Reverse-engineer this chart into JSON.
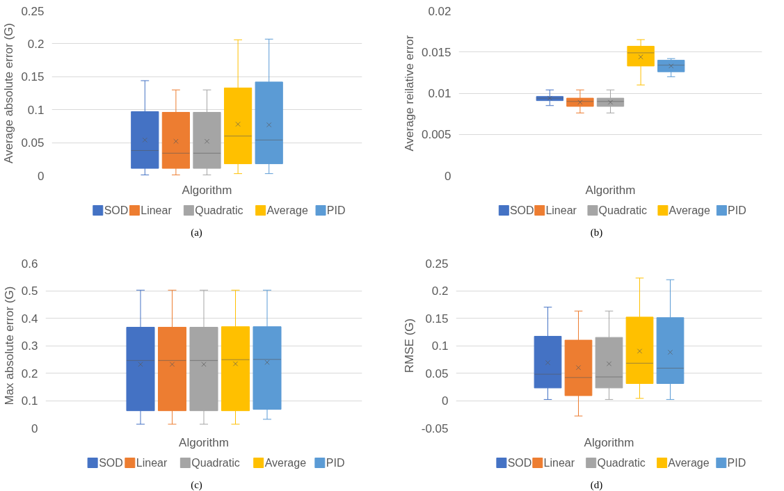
{
  "chart_data": [
    {
      "type": "box",
      "categories": [
        null
      ],
      "xlabel": "Algorithm",
      "ylabel": "Average absolute error (G)",
      "ylim": [
        0,
        0.25
      ],
      "yticks": [
        0,
        0.05,
        0.1,
        0.15,
        0.2,
        0.25
      ],
      "grid": "y",
      "legend": "bottom",
      "tick_labels": "y",
      "annotations": [
        "(a)"
      ],
      "series": [
        {
          "name": "SOD",
          "color": "#4472c4",
          "boxes": [
            {
              "low": 0.001,
              "q1": 0.011,
              "median": 0.038,
              "q3": 0.097,
              "high": 0.144,
              "mean": 0.054
            }
          ]
        },
        {
          "name": "Linear",
          "color": "#ed7d31",
          "boxes": [
            {
              "low": 0.001,
              "q1": 0.011,
              "median": 0.034,
              "q3": 0.096,
              "high": 0.13,
              "mean": 0.052
            }
          ]
        },
        {
          "name": "Quadratic",
          "color": "#a5a5a5",
          "boxes": [
            {
              "low": 0.001,
              "q1": 0.011,
              "median": 0.034,
              "q3": 0.096,
              "high": 0.13,
              "mean": 0.052
            }
          ]
        },
        {
          "name": "Average",
          "color": "#ffc000",
          "boxes": [
            {
              "low": 0.003,
              "q1": 0.018,
              "median": 0.06,
              "q3": 0.133,
              "high": 0.206,
              "mean": 0.078
            }
          ]
        },
        {
          "name": "PID",
          "color": "#5b9bd5",
          "boxes": [
            {
              "low": 0.003,
              "q1": 0.018,
              "median": 0.054,
              "q3": 0.142,
              "high": 0.207,
              "mean": 0.077
            }
          ]
        }
      ]
    },
    {
      "type": "box",
      "categories": [
        null
      ],
      "xlabel": "Algorithm",
      "ylabel": "Average reilative error",
      "ylim": [
        0,
        0.02
      ],
      "yticks": [
        0,
        0.005,
        0.01,
        0.015,
        0.02
      ],
      "grid": "y",
      "legend": "bottom",
      "tick_labels": "y",
      "annotations": [
        "(b)"
      ],
      "series": [
        {
          "name": "SOD",
          "color": "#4472c4",
          "boxes": [
            {
              "low": 0.0085,
              "q1": 0.0091,
              "median": 0.0094,
              "q3": 0.0096,
              "high": 0.0104,
              "mean": 0.0094
            }
          ]
        },
        {
          "name": "Linear",
          "color": "#ed7d31",
          "boxes": [
            {
              "low": 0.0076,
              "q1": 0.0084,
              "median": 0.009,
              "q3": 0.0094,
              "high": 0.0104,
              "mean": 0.0089
            }
          ]
        },
        {
          "name": "Quadratic",
          "color": "#a5a5a5",
          "boxes": [
            {
              "low": 0.0076,
              "q1": 0.0084,
              "median": 0.009,
              "q3": 0.0094,
              "high": 0.0104,
              "mean": 0.0089
            }
          ]
        },
        {
          "name": "Average",
          "color": "#ffc000",
          "boxes": [
            {
              "low": 0.011,
              "q1": 0.0133,
              "median": 0.0149,
              "q3": 0.0157,
              "high": 0.0165,
              "mean": 0.0144
            }
          ]
        },
        {
          "name": "PID",
          "color": "#5b9bd5",
          "boxes": [
            {
              "low": 0.012,
              "q1": 0.0126,
              "median": 0.0134,
              "q3": 0.014,
              "high": 0.0142,
              "mean": 0.0133
            }
          ]
        }
      ]
    },
    {
      "type": "box",
      "categories": [
        null
      ],
      "xlabel": "Algorithm",
      "ylabel": "Max absolute error (G)",
      "ylim": [
        0,
        0.6
      ],
      "yticks": [
        0,
        0.1,
        0.2,
        0.3,
        0.4,
        0.5,
        0.6
      ],
      "grid": "y",
      "legend": "bottom",
      "tick_labels": "y",
      "annotations": [
        "(c)"
      ],
      "series": [
        {
          "name": "SOD",
          "color": "#4472c4",
          "boxes": [
            {
              "low": 0.014,
              "q1": 0.063,
              "median": 0.246,
              "q3": 0.367,
              "high": 0.502,
              "mean": 0.232
            }
          ]
        },
        {
          "name": "Linear",
          "color": "#ed7d31",
          "boxes": [
            {
              "low": 0.014,
              "q1": 0.063,
              "median": 0.246,
              "q3": 0.367,
              "high": 0.502,
              "mean": 0.232
            }
          ]
        },
        {
          "name": "Quadratic",
          "color": "#a5a5a5",
          "boxes": [
            {
              "low": 0.014,
              "q1": 0.063,
              "median": 0.246,
              "q3": 0.367,
              "high": 0.502,
              "mean": 0.232
            }
          ]
        },
        {
          "name": "Average",
          "color": "#ffc000",
          "boxes": [
            {
              "low": 0.014,
              "q1": 0.063,
              "median": 0.249,
              "q3": 0.369,
              "high": 0.502,
              "mean": 0.234
            }
          ]
        },
        {
          "name": "PID",
          "color": "#5b9bd5",
          "boxes": [
            {
              "low": 0.032,
              "q1": 0.068,
              "median": 0.25,
              "q3": 0.369,
              "high": 0.502,
              "mean": 0.239
            }
          ]
        }
      ]
    },
    {
      "type": "box",
      "categories": [
        null
      ],
      "xlabel": "Algorithm",
      "ylabel": "RMSE (G)",
      "ylim": [
        -0.05,
        0.25
      ],
      "yticks": [
        -0.05,
        0,
        0.05,
        0.1,
        0.15,
        0.2,
        0.25
      ],
      "grid": "y",
      "legend": "bottom",
      "tick_labels": "y",
      "annotations": [
        "(d)"
      ],
      "series": [
        {
          "name": "SOD",
          "color": "#4472c4",
          "boxes": [
            {
              "low": 0.002,
              "q1": 0.023,
              "median": 0.048,
              "q3": 0.117,
              "high": 0.17,
              "mean": 0.069
            }
          ]
        },
        {
          "name": "Linear",
          "color": "#ed7d31",
          "boxes": [
            {
              "low": -0.028,
              "q1": 0.009,
              "median": 0.042,
              "q3": 0.11,
              "high": 0.163,
              "mean": 0.06
            }
          ]
        },
        {
          "name": "Quadratic",
          "color": "#a5a5a5",
          "boxes": [
            {
              "low": 0.002,
              "q1": 0.023,
              "median": 0.043,
              "q3": 0.115,
              "high": 0.163,
              "mean": 0.067
            }
          ]
        },
        {
          "name": "Average",
          "color": "#ffc000",
          "boxes": [
            {
              "low": 0.004,
              "q1": 0.031,
              "median": 0.068,
              "q3": 0.152,
              "high": 0.223,
              "mean": 0.09
            }
          ]
        },
        {
          "name": "PID",
          "color": "#5b9bd5",
          "boxes": [
            {
              "low": 0.002,
              "q1": 0.031,
              "median": 0.059,
              "q3": 0.151,
              "high": 0.22,
              "mean": 0.088
            }
          ]
        }
      ]
    }
  ]
}
